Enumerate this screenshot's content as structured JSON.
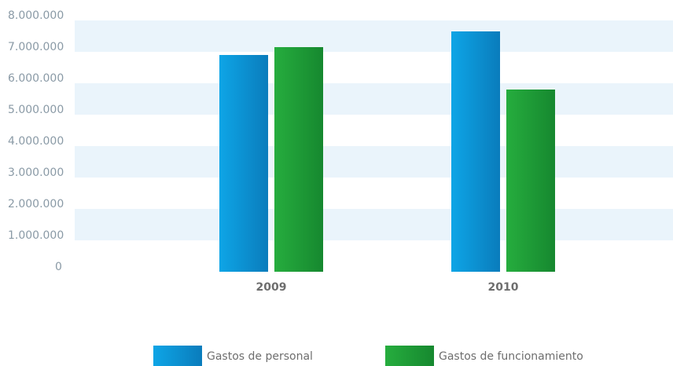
{
  "chart_data": {
    "type": "bar",
    "categories": [
      "2009",
      "2010"
    ],
    "series": [
      {
        "name": "Gastos de personal",
        "color": [
          "#0ea5e6",
          "#0a7cbc"
        ],
        "values": [
          6900000,
          7650000
        ]
      },
      {
        "name": "Gastos de funcionamiento",
        "color": [
          "#26ad3e",
          "#16882f"
        ],
        "values": [
          7150000,
          5800000
        ]
      }
    ],
    "ylim": [
      0,
      8000000
    ],
    "yticks": [
      0,
      {
        "value": 1000000,
        "label": "1.000.000"
      },
      {
        "value": 2000000,
        "label": "2.000.000"
      },
      {
        "value": 3000000,
        "label": "3.000.000"
      },
      {
        "value": 4000000,
        "label": "4.000.000"
      },
      {
        "value": 5000000,
        "label": "5.000.000"
      },
      {
        "value": 6000000,
        "label": "6.000.000"
      },
      {
        "value": 7000000,
        "label": "7.000.000"
      },
      {
        "value": 8000000,
        "label": "8.000.000"
      }
    ],
    "band_color": "#eaf4fb"
  }
}
